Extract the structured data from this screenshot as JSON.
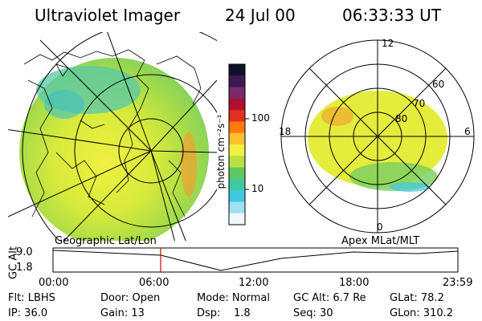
{
  "header": {
    "title": "Ultraviolet Imager",
    "date": "24 Jul 00",
    "time": "06:33:33 UT"
  },
  "colorbar": {
    "unit_label": "photon cm⁻²s⁻¹",
    "ticks": [
      "100",
      "10"
    ],
    "colors_top_to_bottom": [
      "#10102a",
      "#3a1a55",
      "#7a2a6a",
      "#b01030",
      "#e03020",
      "#ff7a10",
      "#ffc030",
      "#f0f040",
      "#b8e040",
      "#60c860",
      "#40c8a0",
      "#40c8e0",
      "#a0e0f0",
      "#f0f8fc"
    ]
  },
  "polar": {
    "mlt_labels": {
      "top": "12",
      "bottom": "0",
      "left": "18",
      "right": "6"
    },
    "lat_labels": [
      "60",
      "70",
      "80"
    ]
  },
  "panel_labels": {
    "left": "Geographic Lat/Lon",
    "right": "Apex MLat/MLT"
  },
  "timeline": {
    "ylabel": "GC Alt",
    "yticks": [
      "9.0",
      "1.8"
    ],
    "xticks": [
      "00:00",
      "06:00",
      "12:00",
      "18:00",
      "23:59"
    ]
  },
  "info": {
    "row1": [
      "Flt: LBHS",
      "Door: Open",
      "Mode: Normal",
      "GC Alt: 6.7 Re",
      "GLat:  78.2"
    ],
    "row2": [
      "IP: 36.0",
      "Gain: 13",
      "Dsp:    1.8",
      "Seq: 30",
      "GLon: 310.2"
    ]
  },
  "colors": {
    "marker": "#cc0000",
    "grid": "#000000"
  }
}
